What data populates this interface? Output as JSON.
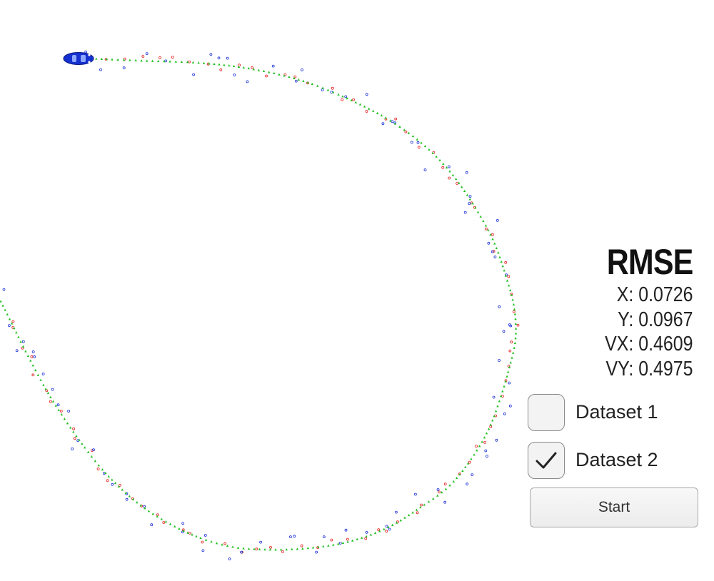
{
  "rmse": {
    "title": "RMSE",
    "x": "X: 0.0726",
    "y": "Y: 0.0967",
    "vx": "VX: 0.4609",
    "vy": "VY: 0.4975"
  },
  "datasets": [
    {
      "label": "Dataset 1",
      "checked": false
    },
    {
      "label": "Dataset 2",
      "checked": true
    }
  ],
  "start_label": "Start",
  "colors": {
    "estimate": "#22c022",
    "lidar": "#e02020",
    "radar": "#1a2fd6",
    "car": "#1530d0"
  },
  "icons": {
    "car": "car-icon",
    "checkmark": "checkmark-icon"
  }
}
